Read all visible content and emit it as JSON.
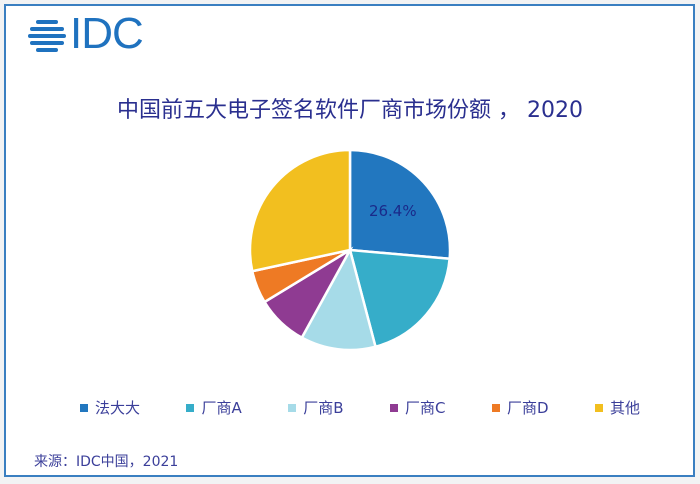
{
  "logo": {
    "text": "IDC"
  },
  "chart_data": {
    "type": "pie",
    "title": "中国前五大电子签名软件厂商市场份额 ， 2020",
    "categories": [
      "法大大",
      "厂商A",
      "厂商B",
      "厂商C",
      "厂商D",
      "其他"
    ],
    "values": [
      26.4,
      19.5,
      12.1,
      8.3,
      5.3,
      28.4
    ],
    "colors": [
      "#2277bf",
      "#36adc9",
      "#a6dbe8",
      "#8f3b92",
      "#ee7a24",
      "#f2bf1f"
    ],
    "data_labels": [
      {
        "category": "法大大",
        "text": "26.4%"
      }
    ],
    "legend_position": "bottom",
    "start_angle": "12 o'clock, clockwise"
  },
  "title": "中国前五大电子签名软件厂商市场份额 ， 2020",
  "label_first": "26.4%",
  "legend": [
    {
      "label": "法大大",
      "color": "#2277bf"
    },
    {
      "label": "厂商A",
      "color": "#36adc9"
    },
    {
      "label": "厂商B",
      "color": "#a6dbe8"
    },
    {
      "label": "厂商C",
      "color": "#8f3b92"
    },
    {
      "label": "厂商D",
      "color": "#ee7a24"
    },
    {
      "label": "其他",
      "color": "#f2bf1f"
    }
  ],
  "source": "来源：IDC中国，2021"
}
